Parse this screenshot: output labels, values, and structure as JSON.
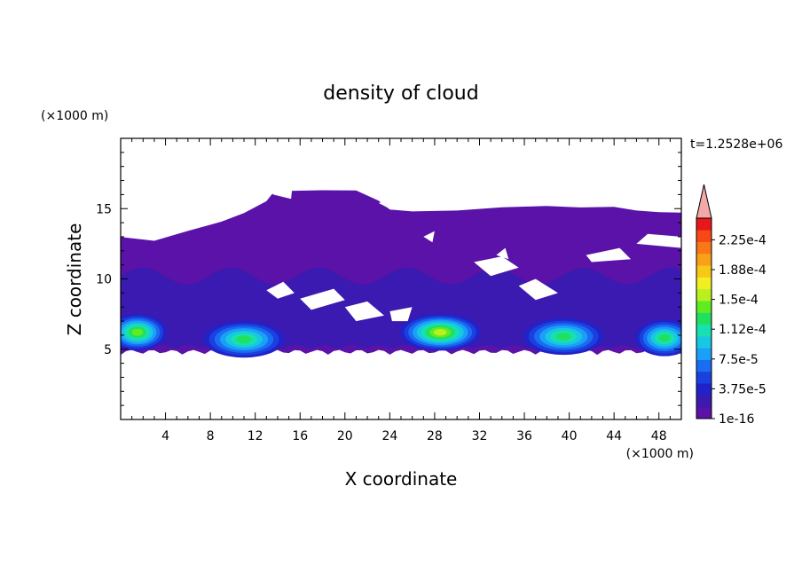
{
  "chart_data": {
    "type": "contour",
    "title": "density of cloud",
    "xlabel": "X coordinate",
    "ylabel": "Z coordinate",
    "x_unit": "(×1000 m)",
    "y_unit": "(×1000 m)",
    "time_label": "t=1.2528e+06",
    "xlim": [
      0,
      50
    ],
    "ylim": [
      0,
      20
    ],
    "x_ticks": [
      "4",
      "8",
      "12",
      "16",
      "20",
      "24",
      "28",
      "32",
      "36",
      "40",
      "44",
      "48"
    ],
    "y_ticks": [
      "5",
      "10",
      "15"
    ],
    "colorbar": {
      "levels": [
        "1e-16",
        "3.75e-5",
        "7.5e-5",
        "1.12e-4",
        "1.5e-4",
        "1.88e-4",
        "2.25e-4"
      ],
      "colors": [
        "#5a12a8",
        "#3a1ab0",
        "#2222c8",
        "#1a40e0",
        "#1a6cf0",
        "#1aa0f8",
        "#18c8e0",
        "#18e0b0",
        "#20e060",
        "#60ec20",
        "#b8f020",
        "#f0f020",
        "#f8c818",
        "#f8a018",
        "#f87818",
        "#f84818",
        "#e81818"
      ],
      "extend_color": "#f4a8a8",
      "extend": "max"
    },
    "field": {
      "base_color": "#5a12a8",
      "main_layer_z": [
        4.6,
        12.8
      ],
      "upper_anvil_z": [
        12.8,
        16.4
      ],
      "cores": [
        {
          "x": 1.5,
          "z": 6.2,
          "level": 7
        },
        {
          "x": 11,
          "z": 5.7,
          "level": 6
        },
        {
          "x": 28.5,
          "z": 6.2,
          "level": 8
        },
        {
          "x": 39.5,
          "z": 5.9,
          "level": 6
        },
        {
          "x": 48.5,
          "z": 5.8,
          "level": 6
        }
      ]
    }
  }
}
